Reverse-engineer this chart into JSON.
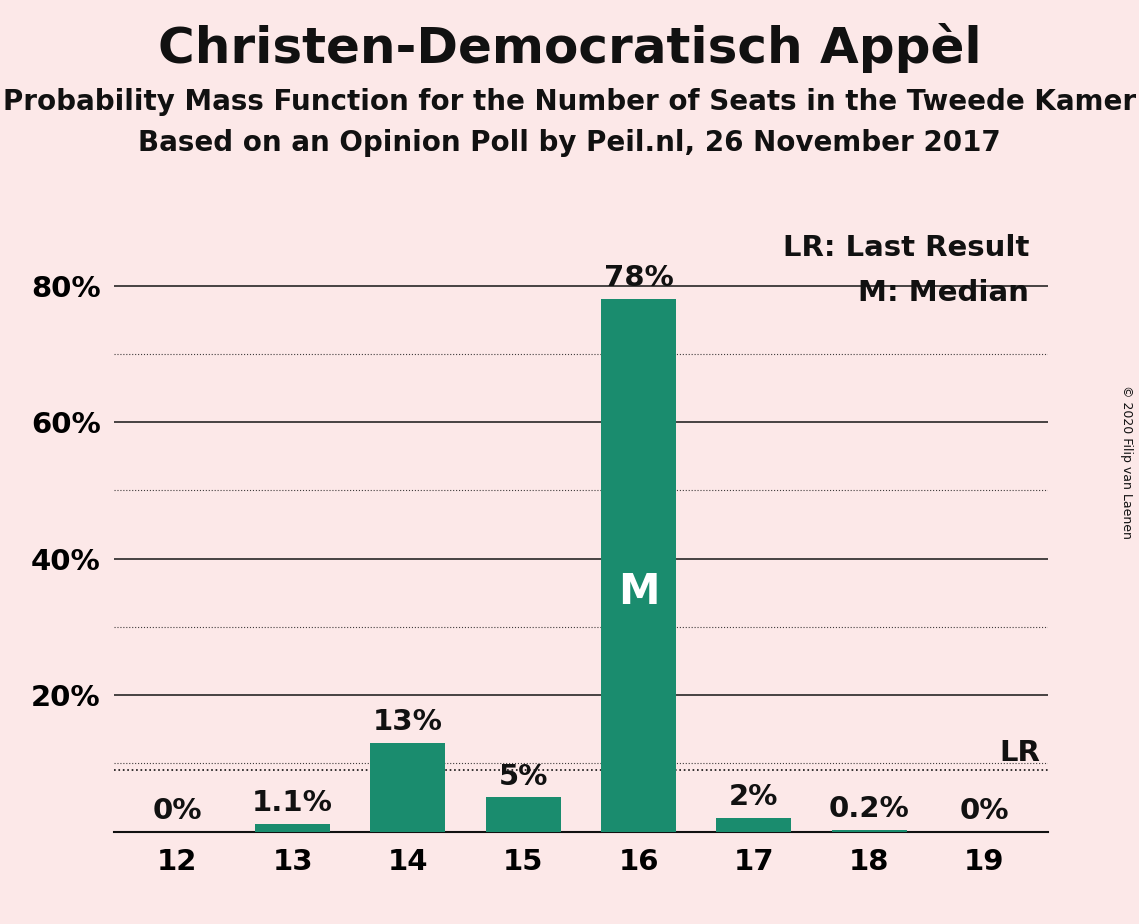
{
  "title": "Christen-Democratisch Appèl",
  "subtitle1": "Probability Mass Function for the Number of Seats in the Tweede Kamer",
  "subtitle2": "Based on an Opinion Poll by Peil.nl, 26 November 2017",
  "copyright": "© 2020 Filip van Laenen",
  "categories": [
    12,
    13,
    14,
    15,
    16,
    17,
    18,
    19
  ],
  "values": [
    0.0,
    1.1,
    13.0,
    5.0,
    78.0,
    2.0,
    0.2,
    0.0
  ],
  "labels": [
    "0%",
    "1.1%",
    "13%",
    "5%",
    "78%",
    "2%",
    "0.2%",
    "0%"
  ],
  "bar_color": "#1a8c6e",
  "background_color": "#fce8e8",
  "ylim": [
    0,
    88
  ],
  "grid_major_ticks": [
    20,
    40,
    60,
    80
  ],
  "grid_minor_ticks": [
    10,
    30,
    50,
    70
  ],
  "median_bar_index": 4,
  "median_label": "M",
  "lr_label": "LR",
  "legend_lr": "LR: Last Result",
  "legend_m": "M: Median",
  "text_color": "#111111",
  "title_fontsize": 36,
  "subtitle_fontsize": 20,
  "tick_fontsize": 21,
  "annotation_fontsize": 21,
  "median_fontsize": 30,
  "lr_line_value": 9.0,
  "ytick_positions": [
    20,
    40,
    60,
    80
  ],
  "ytick_labels": [
    "20%",
    "40%",
    "60%",
    "80%"
  ]
}
